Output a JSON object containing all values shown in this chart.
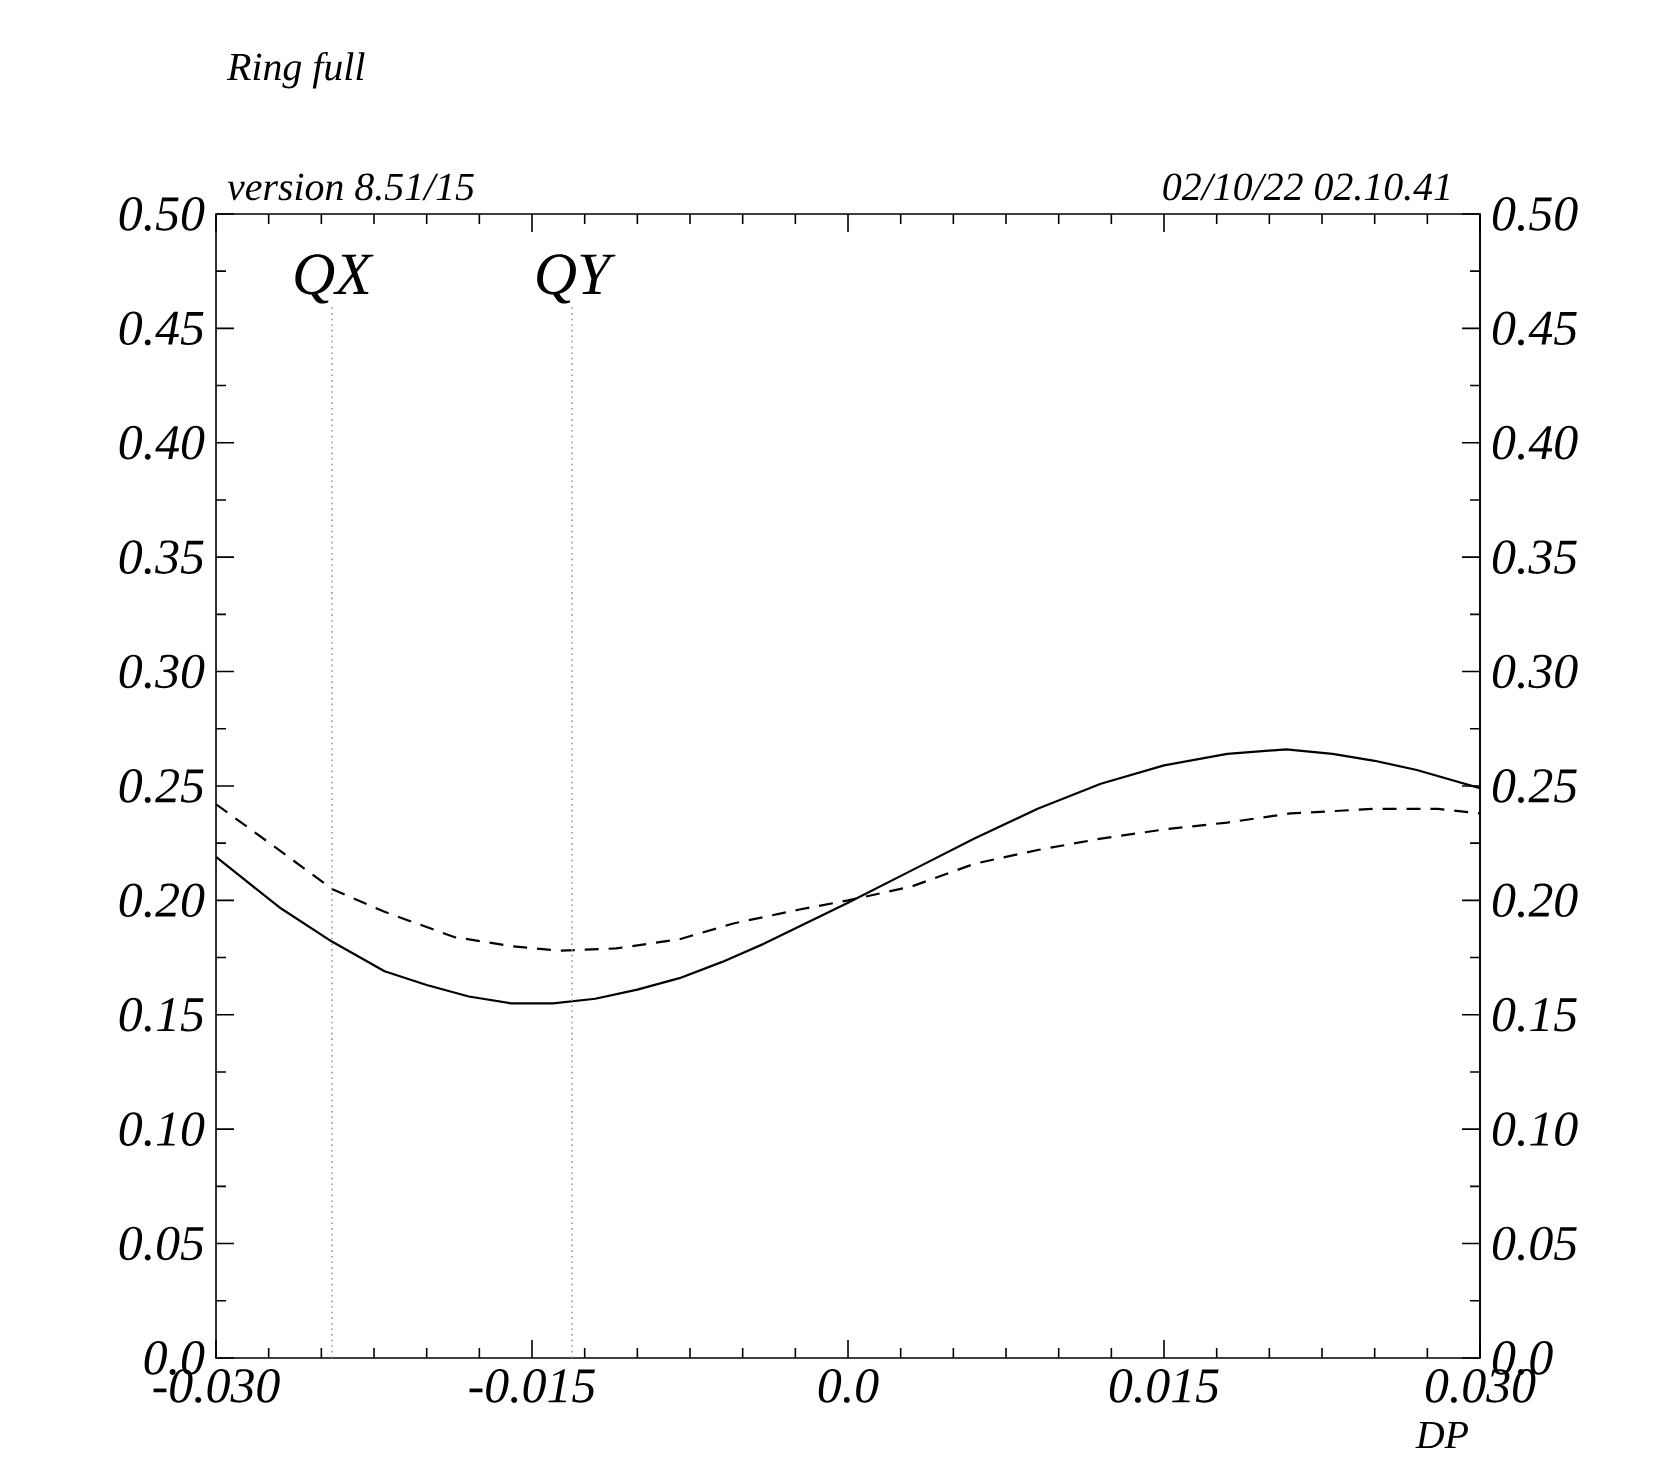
{
  "chart_data": {
    "type": "line",
    "title": "Ring full",
    "subtitle": "version 8.51/15",
    "annotations": [
      "02/10/22  02.10.41"
    ],
    "xlabel": "DP",
    "xlim": [
      -0.03,
      0.03
    ],
    "xticks": [
      {
        "value": -0.03,
        "label": "-0.030"
      },
      -0.015,
      {
        "value": 0,
        "label": "0.0"
      },
      0.015,
      {
        "value": 0.03,
        "label": "0.030"
      }
    ],
    "ylim": [
      0,
      0.5
    ],
    "yticks": [
      {
        "value": 0,
        "label": "0.0"
      },
      0.05,
      {
        "value": 0.1,
        "label": "0.10"
      },
      0.15,
      {
        "value": 0.2,
        "label": "0.20"
      },
      0.25,
      {
        "value": 0.3,
        "label": "0.30"
      },
      0.35,
      {
        "value": 0.4,
        "label": "0.40"
      },
      0.45,
      {
        "value": 0.5,
        "label": "0.50"
      }
    ],
    "y2lim": [
      0,
      0.5
    ],
    "y2ticks": [
      {
        "value": 0,
        "label": "0.0"
      },
      0.05,
      {
        "value": 0.1,
        "label": "0.10"
      },
      0.15,
      {
        "value": 0.2,
        "label": "0.20"
      },
      0.25,
      {
        "value": 0.3,
        "label": "0.30"
      },
      0.35,
      {
        "value": 0.4,
        "label": "0.40"
      },
      0.45,
      {
        "value": 0.5,
        "label": "0.50"
      }
    ],
    "grid": false,
    "marker": "none",
    "ref_lines": [
      {
        "axis": "x",
        "value": -0.0245,
        "label": "QX",
        "color": "#999999",
        "line_style": "dotted"
      },
      {
        "axis": "x",
        "value": -0.0131,
        "label": "QY",
        "color": "#999999",
        "line_style": "dotted"
      }
    ],
    "series": [
      {
        "color": "#000000",
        "line_style": "solid",
        "x": [
          -0.03,
          -0.027,
          -0.0245,
          -0.022,
          -0.02,
          -0.018,
          -0.016,
          -0.014,
          -0.012,
          -0.01,
          -0.008,
          -0.006,
          -0.004,
          -0.002,
          0.0,
          0.003,
          0.006,
          0.009,
          0.012,
          0.015,
          0.018,
          0.0208,
          0.023,
          0.025,
          0.027,
          0.03
        ],
        "values": [
          0.219,
          0.197,
          0.182,
          0.169,
          0.163,
          0.158,
          0.155,
          0.155,
          0.157,
          0.161,
          0.166,
          0.173,
          0.181,
          0.19,
          0.199,
          0.213,
          0.227,
          0.24,
          0.251,
          0.259,
          0.264,
          0.266,
          0.264,
          0.261,
          0.257,
          0.249
        ]
      },
      {
        "color": "#000000",
        "line_style": "dashed",
        "x": [
          -0.03,
          -0.027,
          -0.0245,
          -0.022,
          -0.0187,
          -0.016,
          -0.0137,
          -0.011,
          -0.008,
          -0.0054,
          -0.0023,
          0.0,
          0.003,
          0.006,
          0.009,
          0.012,
          0.015,
          0.018,
          0.021,
          0.025,
          0.028,
          0.03
        ],
        "values": [
          0.242,
          0.222,
          0.205,
          0.195,
          0.184,
          0.18,
          0.178,
          0.179,
          0.183,
          0.19,
          0.196,
          0.2,
          0.206,
          0.216,
          0.222,
          0.227,
          0.231,
          0.234,
          0.238,
          0.24,
          0.24,
          0.238
        ]
      }
    ]
  }
}
